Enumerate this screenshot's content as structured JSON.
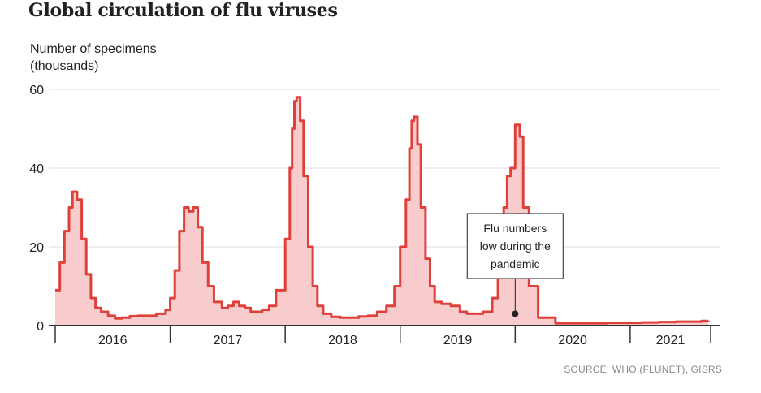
{
  "title": "Global circulation of flu viruses",
  "source": "SOURCE: WHO (FLUNET), GISRS",
  "colors": {
    "line": "#e0403a",
    "fill": "#f8cccc",
    "grid": "#dddddd",
    "axis": "#333333"
  },
  "chart_data": {
    "type": "area",
    "title": "Global circulation of flu viruses",
    "ylabel": [
      "Number of specimens",
      "(thousands)"
    ],
    "xlabel": "",
    "ylim": [
      0,
      60
    ],
    "yticks": [
      0,
      20,
      40,
      60
    ],
    "xlim": [
      2016,
      2021.7
    ],
    "year_labels": [
      "2016",
      "2017",
      "2018",
      "2019",
      "2020",
      "2021"
    ],
    "grid": true,
    "annotation": {
      "lines": [
        "Flu numbers",
        "low during the",
        "pandemic"
      ],
      "x": 2020.0,
      "y": 3
    },
    "series": [
      {
        "x": [
          2016.0,
          2016.04,
          2016.08,
          2016.12,
          2016.15,
          2016.19,
          2016.23,
          2016.27,
          2016.31,
          2016.35,
          2016.4,
          2016.46,
          2016.52,
          2016.58,
          2016.65,
          2016.72,
          2016.8,
          2016.88,
          2016.96,
          2017.0,
          2017.04,
          2017.08,
          2017.12,
          2017.16,
          2017.2,
          2017.24,
          2017.28,
          2017.33,
          2017.38,
          2017.45,
          2017.5,
          2017.55,
          2017.6,
          2017.65,
          2017.7,
          2017.75,
          2017.8,
          2017.86,
          2017.92,
          2018.0,
          2018.04,
          2018.06,
          2018.08,
          2018.1,
          2018.13,
          2018.16,
          2018.2,
          2018.24,
          2018.28,
          2018.33,
          2018.4,
          2018.48,
          2018.56,
          2018.64,
          2018.72,
          2018.8,
          2018.88,
          2018.95,
          2019.0,
          2019.05,
          2019.08,
          2019.1,
          2019.12,
          2019.15,
          2019.18,
          2019.22,
          2019.26,
          2019.3,
          2019.36,
          2019.44,
          2019.52,
          2019.58,
          2019.64,
          2019.72,
          2019.8,
          2019.85,
          2019.9,
          2019.93,
          2019.96,
          2020.0,
          2020.04,
          2020.07,
          2020.12,
          2020.2,
          2020.35,
          2020.5,
          2020.65,
          2020.8,
          2020.95,
          2021.1,
          2021.25,
          2021.4,
          2021.5,
          2021.62,
          2021.68
        ],
        "y": [
          9,
          16,
          24,
          30,
          34,
          32,
          22,
          13,
          7,
          4.5,
          3.5,
          2.5,
          1.8,
          2,
          2.4,
          2.5,
          2.5,
          3,
          4,
          7,
          14,
          24,
          30,
          29,
          30,
          25,
          16,
          10,
          6,
          4.5,
          5,
          6,
          5,
          4.5,
          3.5,
          3.5,
          4,
          5,
          9,
          22,
          40,
          50,
          57,
          58,
          52,
          38,
          20,
          10,
          5,
          3,
          2.2,
          2,
          2,
          2.3,
          2.5,
          3.5,
          5,
          10,
          20,
          32,
          45,
          52,
          53,
          46,
          30,
          17,
          10,
          6,
          5.5,
          5,
          3.5,
          3,
          3,
          3.5,
          7,
          16,
          30,
          38,
          40,
          51,
          48,
          30,
          10,
          2,
          0.6,
          0.6,
          0.6,
          0.7,
          0.7,
          0.8,
          0.9,
          1,
          1,
          1.2,
          1.3
        ]
      }
    ]
  }
}
